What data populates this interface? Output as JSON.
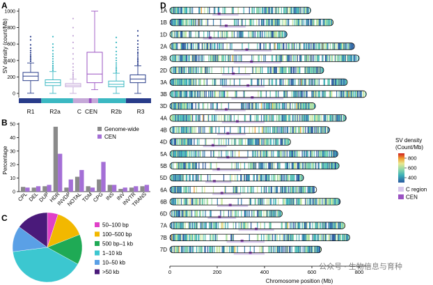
{
  "panels": {
    "a": "A",
    "b": "B",
    "c": "C",
    "d": "D"
  },
  "chart_data": [
    {
      "id": "boxplot",
      "type": "box",
      "ylabel": "SV density (count/Mb)",
      "ylim": [
        0,
        1000
      ],
      "yticks": [
        "0",
        "200",
        "400",
        "600",
        "800",
        "1000"
      ],
      "categories": [
        "R1",
        "R2a",
        "C",
        "CEN",
        "R2b",
        "R3"
      ],
      "boxes": [
        {
          "name": "R1",
          "color": "#283c8a",
          "min": 2,
          "q1": 155,
          "median": 210,
          "q3": 255,
          "max": 370,
          "outliers": [
            390,
            410,
            430,
            450,
            470,
            495,
            520,
            550,
            590,
            650,
            690
          ]
        },
        {
          "name": "R2a",
          "color": "#3bb8c2",
          "min": 0,
          "q1": 95,
          "median": 130,
          "q3": 165,
          "max": 265,
          "outliers": [
            280,
            300,
            320,
            340,
            365,
            390,
            420,
            450,
            480,
            520,
            560,
            600,
            690
          ]
        },
        {
          "name": "C",
          "color": "#c5a8d8",
          "min": 0,
          "q1": 80,
          "median": 100,
          "q3": 120,
          "max": 175,
          "outliers": [
            190,
            210,
            230,
            250,
            280,
            320,
            360,
            420,
            480,
            550,
            620,
            700,
            800,
            910
          ]
        },
        {
          "name": "CEN",
          "color": "#9a52c2",
          "min": 45,
          "q1": 130,
          "median": 235,
          "q3": 500,
          "max": 1000,
          "outliers": []
        },
        {
          "name": "R2b",
          "color": "#3bb8c2",
          "min": 0,
          "q1": 80,
          "median": 110,
          "q3": 150,
          "max": 245,
          "outliers": [
            260,
            280,
            300,
            320,
            345,
            370,
            400,
            430,
            470,
            510,
            560,
            620,
            680
          ]
        },
        {
          "name": "R3",
          "color": "#283c8a",
          "min": 0,
          "q1": 130,
          "median": 175,
          "q3": 225,
          "max": 335,
          "outliers": [
            350,
            370,
            390,
            410,
            430,
            455,
            480,
            500,
            530,
            560,
            600,
            640,
            700,
            760
          ]
        }
      ],
      "region_bar": [
        {
          "name": "R1",
          "color": "#283c8a",
          "frac": 0.17
        },
        {
          "name": "R2a",
          "color": "#3bb8c2",
          "frac": 0.24
        },
        {
          "name": "C",
          "color": "#c5a8d8",
          "frac": 0.12
        },
        {
          "name": "CEN",
          "color": "#9a52c2",
          "frac": 0.02
        },
        {
          "name": "C",
          "color": "#c5a8d8",
          "frac": 0.05
        },
        {
          "name": "R2b",
          "color": "#3bb8c2",
          "frac": 0.21
        },
        {
          "name": "R3",
          "color": "#283c8a",
          "frac": 0.19
        }
      ]
    },
    {
      "id": "sv-type-bar",
      "type": "bar",
      "ylabel": "Percentage",
      "ylim": [
        0,
        50
      ],
      "yticks": [
        "0",
        "10",
        "20",
        "30",
        "40",
        "50"
      ],
      "categories": [
        "CPL",
        "DEL",
        "DUP",
        "HDR",
        "INVDP",
        "NOTAL",
        "TDM",
        "CPG",
        "INS",
        "INV",
        "INVTR",
        "TRANS"
      ],
      "legend": [
        "Genome-wide",
        "CEN"
      ],
      "series": [
        {
          "name": "Genome-wide",
          "color": "#8a8a8a",
          "values": [
            3.5,
            3,
            4,
            48,
            3,
            11,
            4,
            9,
            5,
            2,
            3,
            4
          ]
        },
        {
          "name": "CEN",
          "color": "#a46fd6",
          "values": [
            3,
            4,
            5,
            28,
            9,
            16,
            3,
            22,
            5,
            3,
            4,
            5
          ]
        }
      ]
    },
    {
      "id": "size-pie",
      "type": "pie",
      "categories": [
        "50–100 bp",
        "100–500 bp",
        "500 bp–1 kb",
        "1–10 kb",
        "10–50 kb",
        ">50 kb"
      ],
      "values": [
        5,
        14,
        14,
        40,
        12,
        15
      ],
      "colors": [
        "#e040c8",
        "#f2b800",
        "#1faa55",
        "#3cc7d0",
        "#5aa0e6",
        "#4a1a7a"
      ]
    },
    {
      "id": "chromosome-map",
      "type": "heatmap",
      "xlabel": "Chromosome position (Mb)",
      "xlim": [
        0,
        850
      ],
      "xticks": [
        "0",
        "200",
        "400",
        "600",
        "800"
      ],
      "chromosomes": [
        {
          "name": "1A",
          "length": 595,
          "cen": 208,
          "creg": [
            180,
            290
          ]
        },
        {
          "name": "1B",
          "length": 690,
          "cen": 238,
          "creg": [
            210,
            320
          ]
        },
        {
          "name": "1D",
          "length": 495,
          "cen": 170,
          "creg": [
            140,
            240
          ]
        },
        {
          "name": "2A",
          "length": 780,
          "cen": 325,
          "creg": [
            270,
            430
          ]
        },
        {
          "name": "2B",
          "length": 800,
          "cen": 345,
          "creg": [
            270,
            470
          ]
        },
        {
          "name": "2D",
          "length": 650,
          "cen": 268,
          "creg": [
            220,
            340
          ]
        },
        {
          "name": "3A",
          "length": 750,
          "cen": 330,
          "creg": [
            220,
            400
          ]
        },
        {
          "name": "3B",
          "length": 830,
          "cen": 348,
          "creg": [
            260,
            480
          ]
        },
        {
          "name": "3D",
          "length": 615,
          "cen": 238,
          "creg": [
            190,
            320
          ]
        },
        {
          "name": "4A",
          "length": 745,
          "cen": 285,
          "creg": [
            220,
            400
          ]
        },
        {
          "name": "4B",
          "length": 675,
          "cen": 245,
          "creg": [
            200,
            320
          ]
        },
        {
          "name": "4D",
          "length": 510,
          "cen": 182,
          "creg": [
            140,
            240
          ]
        },
        {
          "name": "5A",
          "length": 710,
          "cen": 245,
          "creg": [
            200,
            330
          ]
        },
        {
          "name": "5B",
          "length": 715,
          "cen": 205,
          "creg": [
            180,
            300
          ]
        },
        {
          "name": "5D",
          "length": 565,
          "cen": 188,
          "creg": [
            150,
            260
          ]
        },
        {
          "name": "6A",
          "length": 620,
          "cen": 220,
          "creg": [
            180,
            300
          ]
        },
        {
          "name": "6B",
          "length": 720,
          "cen": 255,
          "creg": [
            200,
            330
          ]
        },
        {
          "name": "6D",
          "length": 475,
          "cen": 210,
          "creg": [
            160,
            280
          ]
        },
        {
          "name": "7A",
          "length": 740,
          "cen": 365,
          "creg": [
            290,
            440
          ]
        },
        {
          "name": "7B",
          "length": 760,
          "cen": 305,
          "creg": [
            240,
            400
          ]
        },
        {
          "name": "7D",
          "length": 640,
          "cen": 340,
          "creg": [
            270,
            400
          ]
        }
      ],
      "colorbar": {
        "title": "SV density\n(Count/Mb)",
        "ticks": [
          "400",
          "600",
          "800"
        ],
        "range": [
          300,
          900
        ],
        "colors": [
          "#2a5aa0",
          "#3cb0b8",
          "#90d8a8",
          "#e8e890",
          "#f0a030",
          "#d02020"
        ]
      },
      "legend": [
        {
          "label": "C region",
          "color": "#d8c8ec"
        },
        {
          "label": "CEN",
          "color": "#9a52c2"
        }
      ]
    }
  ],
  "watermark": "公众号 · 生物信息与育种"
}
